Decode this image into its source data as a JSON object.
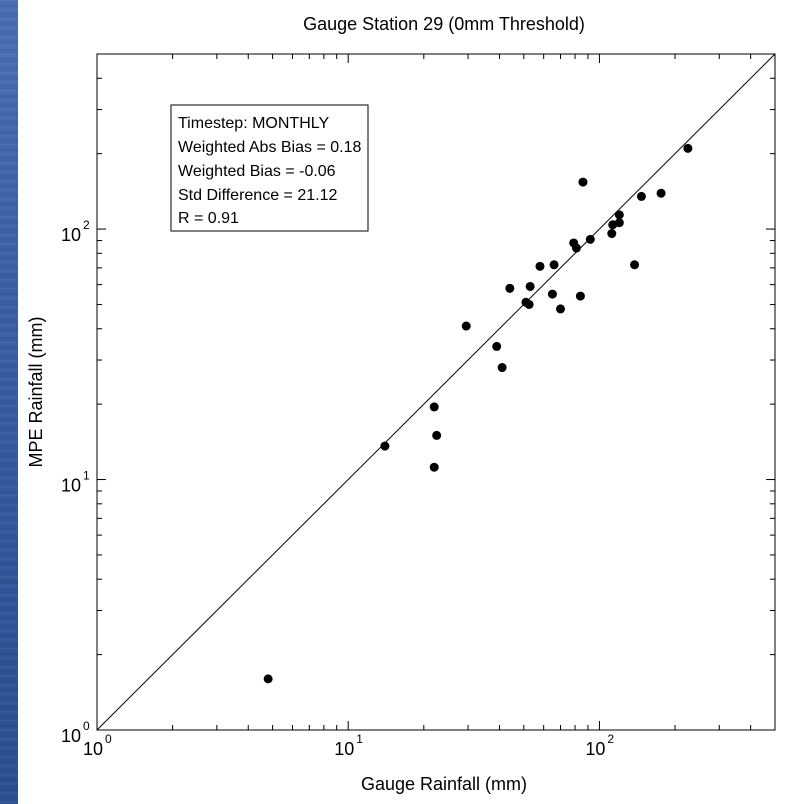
{
  "chart_data": {
    "type": "scatter",
    "title": "Gauge Station 29 (0mm Threshold)",
    "xlabel": "Gauge Rainfall (mm)",
    "ylabel": "MPE Rainfall (mm)",
    "x_scale": "log",
    "y_scale": "log",
    "xlim": [
      1,
      500
    ],
    "ylim": [
      1,
      500
    ],
    "x_ticks": [
      {
        "base": "10",
        "exp": "0",
        "value": 1
      },
      {
        "base": "10",
        "exp": "1",
        "value": 10
      },
      {
        "base": "10",
        "exp": "2",
        "value": 100
      }
    ],
    "y_ticks": [
      {
        "base": "10",
        "exp": "0",
        "value": 1
      },
      {
        "base": "10",
        "exp": "1",
        "value": 10
      },
      {
        "base": "10",
        "exp": "2",
        "value": 100
      }
    ],
    "reference_line": "y = x",
    "grid": false,
    "marker_color": "#000000",
    "annotation": {
      "lines": [
        "Timestep: MONTHLY",
        "Weighted Abs Bias = 0.18",
        "Weighted Bias = -0.06",
        "Std Difference = 21.12",
        "R = 0.91"
      ],
      "placement": "top-left"
    },
    "points": [
      {
        "x": 4.8,
        "y": 1.6
      },
      {
        "x": 14,
        "y": 13.6
      },
      {
        "x": 22,
        "y": 11.2
      },
      {
        "x": 22,
        "y": 19.5
      },
      {
        "x": 22.5,
        "y": 15
      },
      {
        "x": 29.5,
        "y": 41
      },
      {
        "x": 39,
        "y": 34
      },
      {
        "x": 41,
        "y": 28
      },
      {
        "x": 44,
        "y": 58
      },
      {
        "x": 51,
        "y": 51
      },
      {
        "x": 52.5,
        "y": 50
      },
      {
        "x": 53,
        "y": 59
      },
      {
        "x": 58,
        "y": 71
      },
      {
        "x": 65,
        "y": 55
      },
      {
        "x": 66,
        "y": 72
      },
      {
        "x": 70,
        "y": 48
      },
      {
        "x": 79,
        "y": 88
      },
      {
        "x": 81,
        "y": 84
      },
      {
        "x": 84,
        "y": 54
      },
      {
        "x": 86,
        "y": 154
      },
      {
        "x": 92,
        "y": 91
      },
      {
        "x": 112,
        "y": 96
      },
      {
        "x": 113,
        "y": 104
      },
      {
        "x": 120,
        "y": 106
      },
      {
        "x": 120,
        "y": 114
      },
      {
        "x": 138,
        "y": 72
      },
      {
        "x": 147,
        "y": 135
      },
      {
        "x": 176,
        "y": 139
      },
      {
        "x": 225,
        "y": 210
      }
    ]
  }
}
